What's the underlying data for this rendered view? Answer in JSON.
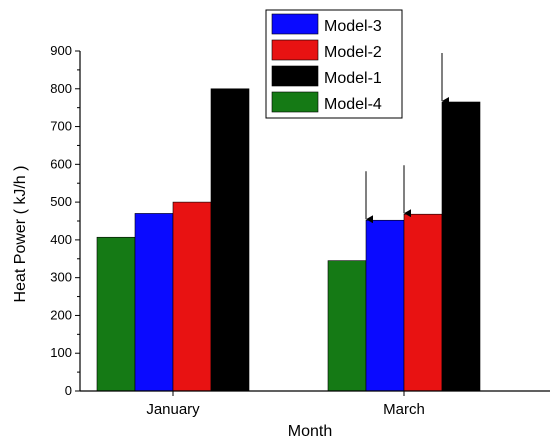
{
  "chart_data": {
    "type": "bar",
    "title": "",
    "xlabel": "Month",
    "ylabel": "Heat Power ( kJ/h )",
    "ylim": [
      0,
      900
    ],
    "yticks": [
      0,
      100,
      200,
      300,
      400,
      500,
      600,
      700,
      800,
      900
    ],
    "categories": [
      "January",
      "March"
    ],
    "legend_position": "top-right",
    "grid": false,
    "series": [
      {
        "name": "Model-4",
        "color": "#157a15",
        "values": [
          407,
          345
        ]
      },
      {
        "name": "Model-3",
        "color": "#0a0aff",
        "values": [
          470,
          452
        ]
      },
      {
        "name": "Model-2",
        "color": "#e81212",
        "values": [
          500,
          468
        ]
      },
      {
        "name": "Model-1",
        "color": "#000000",
        "values": [
          800,
          765
        ]
      }
    ],
    "legend_order": [
      "Model-3",
      "Model-2",
      "Model-1",
      "Model-4"
    ],
    "annotations": [
      {
        "type": "arrow",
        "category": "March",
        "series": "Model-3",
        "tip_value": 452
      },
      {
        "type": "arrow",
        "category": "March",
        "series": "Model-2",
        "tip_value": 468
      },
      {
        "type": "arrow",
        "category": "March",
        "series": "Model-1",
        "tip_value": 765
      }
    ]
  }
}
